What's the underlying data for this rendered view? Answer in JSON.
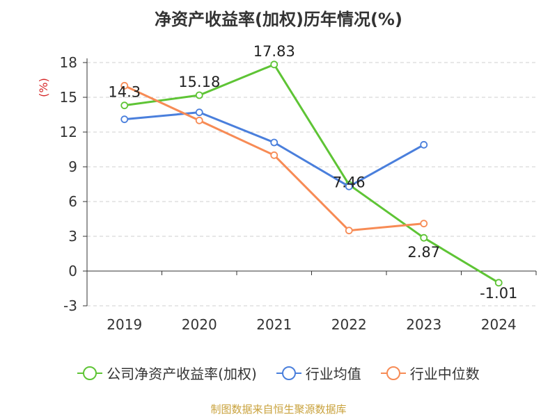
{
  "chart_data": {
    "type": "line",
    "title": "净资产收益率(加权)历年情况(%)",
    "ylabel": "(%)",
    "categories": [
      "2019",
      "2020",
      "2021",
      "2022",
      "2023",
      "2024"
    ],
    "yticks": [
      "18",
      "15",
      "12",
      "9",
      "6",
      "3",
      "0",
      "-3"
    ],
    "ylim": [
      -3,
      18
    ],
    "grid": true,
    "legend_position": "bottom",
    "source": "制图数据来自恒生聚源数据库",
    "series": [
      {
        "name": "公司净资产收益率(加权)",
        "color": "#5ec435",
        "values": [
          14.3,
          15.18,
          17.83,
          7.46,
          2.87,
          -1.01
        ],
        "labels": [
          "14.3",
          "15.18",
          "17.83",
          "7.46",
          "2.87",
          "-1.01"
        ]
      },
      {
        "name": "行业均值",
        "color": "#4a7fdc",
        "values": [
          13.1,
          13.7,
          11.1,
          7.3,
          10.9,
          null
        ],
        "labels": []
      },
      {
        "name": "行业中位数",
        "color": "#f78b55",
        "values": [
          16.0,
          13.0,
          10.0,
          3.5,
          4.1,
          null
        ],
        "labels": []
      }
    ]
  }
}
